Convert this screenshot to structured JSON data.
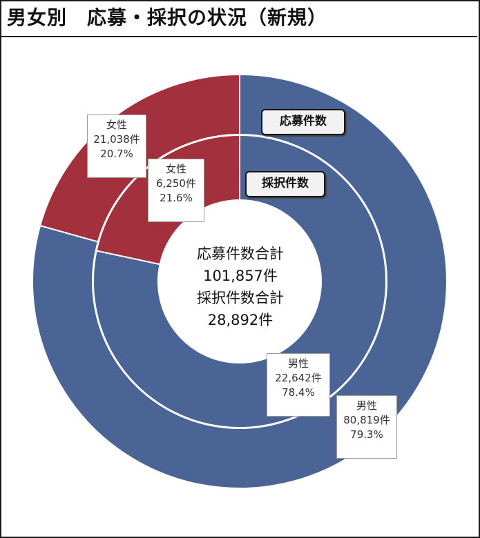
{
  "title": "男女別　応募・採択の状況（新規）",
  "colors": {
    "male": "#4a6595",
    "female": "#a3303d",
    "separator": "#ffffff"
  },
  "legend": {
    "outer_ring": "応募件数",
    "inner_ring": "採択件数"
  },
  "center": {
    "line1": "応募件数合計",
    "line2": "101,857件",
    "line3": "採択件数合計",
    "line4": "28,892件"
  },
  "labels": {
    "outer_female": {
      "name": "女性",
      "count": "21,038件",
      "pct": "20.7%"
    },
    "inner_female": {
      "name": "女性",
      "count": "6,250件",
      "pct": "21.6%"
    },
    "inner_male": {
      "name": "男性",
      "count": "22,642件",
      "pct": "78.4%"
    },
    "outer_male": {
      "name": "男性",
      "count": "80,819件",
      "pct": "79.3%"
    }
  },
  "chart_data": {
    "type": "pie",
    "categories": [
      "男性",
      "女性"
    ],
    "series": [
      {
        "name": "応募件数",
        "values": [
          80819,
          21038
        ],
        "percentages": [
          79.3,
          20.7
        ],
        "total": 101857
      },
      {
        "name": "採択件数",
        "values": [
          22642,
          6250
        ],
        "percentages": [
          78.4,
          21.6
        ],
        "total": 28892
      }
    ],
    "title": "男女別　応募・採択の状況（新規）",
    "start_angle": "12 o'clock",
    "direction": "clockwise"
  }
}
